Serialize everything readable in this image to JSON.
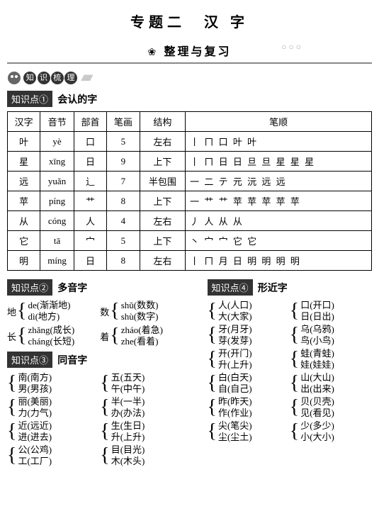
{
  "title": "专题二　汉 字",
  "subtitle": "整理与复习",
  "banner_chars": [
    "知",
    "识",
    "梳",
    "理"
  ],
  "kp1": {
    "label": "知识点①",
    "title": "会认的字",
    "headers": [
      "汉字",
      "音节",
      "部首",
      "笔画",
      "结构",
      "笔顺"
    ],
    "rows": [
      {
        "hanzi": "叶",
        "yinjie": "yè",
        "bushou": "口",
        "bihua": "5",
        "jiegou": "左右",
        "bishun": "丨 ㄇ 口 叶 叶"
      },
      {
        "hanzi": "星",
        "yinjie": "xīng",
        "bushou": "日",
        "bihua": "9",
        "jiegou": "上下",
        "bishun": "丨 ㄇ 日 日 旦 旦 星 星 星"
      },
      {
        "hanzi": "远",
        "yinjie": "yuǎn",
        "bushou": "辶",
        "bihua": "7",
        "jiegou": "半包围",
        "bishun": "一 二 テ 元 沅 远 远"
      },
      {
        "hanzi": "苹",
        "yinjie": "píng",
        "bushou": "艹",
        "bihua": "8",
        "jiegou": "上下",
        "bishun": "一 艹 艹 苹 苹 苹 苹 苹"
      },
      {
        "hanzi": "从",
        "yinjie": "cóng",
        "bushou": "人",
        "bihua": "4",
        "jiegou": "左右",
        "bishun": "丿 人 从 从"
      },
      {
        "hanzi": "它",
        "yinjie": "tā",
        "bushou": "宀",
        "bihua": "5",
        "jiegou": "上下",
        "bishun": "丶 宀 宀 它 它"
      },
      {
        "hanzi": "明",
        "yinjie": "míng",
        "bushou": "日",
        "bihua": "8",
        "jiegou": "左右",
        "bishun": "丨 ㄇ 月 日 明 明 明 明"
      }
    ]
  },
  "kp2": {
    "label": "知识点②",
    "title": "多音字",
    "groups": [
      {
        "pref": "地",
        "a": "de(渐渐地)",
        "b": "dì(地方)"
      },
      {
        "pref": "数",
        "a": "shǔ(数数)",
        "b": "shù(数字)"
      },
      {
        "pref": "长",
        "a": "zhǎng(成长)",
        "b": "cháng(长短)"
      },
      {
        "pref": "着",
        "a": "zháo(着急)",
        "b": "zhe(看着)"
      }
    ]
  },
  "kp3": {
    "label": "知识点③",
    "title": "同音字",
    "pairs": [
      [
        {
          "a": "南(南方)",
          "b": "男(男孩)"
        },
        {
          "a": "五(五天)",
          "b": "午(中午)"
        }
      ],
      [
        {
          "a": "丽(美丽)",
          "b": "力(力气)"
        },
        {
          "a": "半(一半)",
          "b": "办(办法)"
        }
      ],
      [
        {
          "a": "近(远近)",
          "b": "进(进去)"
        },
        {
          "a": "生(生日)",
          "b": "升(上升)"
        }
      ],
      [
        {
          "a": "公(公鸡)",
          "b": "工(工厂)"
        },
        {
          "a": "目(目光)",
          "b": "木(木头)"
        }
      ]
    ]
  },
  "kp4": {
    "label": "知识点④",
    "title": "形近字",
    "pairs": [
      [
        {
          "a": "人(人口)",
          "b": "大(大家)"
        },
        {
          "a": "口(开口)",
          "b": "日(日出)"
        }
      ],
      [
        {
          "a": "牙(月牙)",
          "b": "芽(发芽)"
        },
        {
          "a": "乌(乌鸦)",
          "b": "鸟(小鸟)"
        }
      ],
      [
        {
          "a": "开(开门)",
          "b": "升(上升)"
        },
        {
          "a": "蛙(青蛙)",
          "b": "娃(娃娃)"
        }
      ],
      [
        {
          "a": "白(白天)",
          "b": "自(自己)"
        },
        {
          "a": "山(大山)",
          "b": "出(出来)"
        }
      ],
      [
        {
          "a": "昨(昨天)",
          "b": "作(作业)"
        },
        {
          "a": "贝(贝壳)",
          "b": "见(看见)"
        }
      ],
      [
        {
          "a": "尖(笔尖)",
          "b": "尘(尘土)"
        },
        {
          "a": "少(多少)",
          "b": "小(大小)"
        }
      ]
    ]
  }
}
